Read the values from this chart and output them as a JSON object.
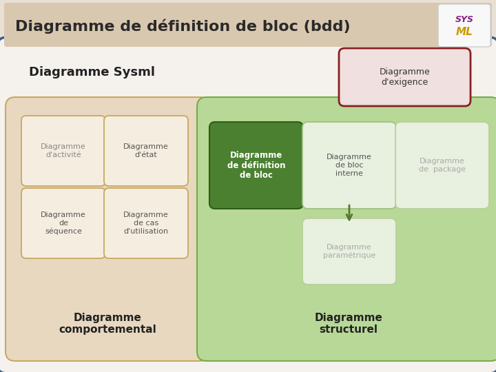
{
  "title": "Diagramme de définition de bloc (bdd)",
  "title_bg": "#d9c8b0",
  "title_color": "#2a2a2a",
  "main_bg": "#e8e0d4",
  "outer_bg": "#f5f2ee",
  "outer_border_color": "#3a5f8a",
  "sysml_label": "Diagramme Sysml",
  "behavioral_label": "Diagramme\ncomportemental",
  "behavioral_bg": "#e8d8c0",
  "behavioral_border": "#c8a860",
  "structural_label": "Diagramme\nstructurel",
  "structural_bg": "#b8d898",
  "structural_border": "#78aa48",
  "exigence_label": "Diagramme\nd'exigence",
  "exigence_bg": "#f0e0e0",
  "exigence_border": "#882020",
  "boxes_behavioral": [
    {
      "label": "Diagramme\nd'activité",
      "bg": "#f5ede0",
      "border": "#c8a860",
      "text_color": "#888888"
    },
    {
      "label": "Diagramme\nd'état",
      "bg": "#f5ede0",
      "border": "#c8a860",
      "text_color": "#555555"
    },
    {
      "label": "Diagramme\nde\nséquence",
      "bg": "#f5ede0",
      "border": "#c8a860",
      "text_color": "#555555"
    },
    {
      "label": "Diagramme\nde cas\nd'utilisation",
      "bg": "#f5ede0",
      "border": "#c8a860",
      "text_color": "#555555"
    }
  ],
  "boxes_structural": [
    {
      "label": "Diagramme\nde définition\nde bloc",
      "bg": "#4a8030",
      "border": "#2a6010",
      "text_color": "#ffffff",
      "bold": true
    },
    {
      "label": "Diagramme\nde bloc\ninterne",
      "bg": "#e8f0e0",
      "border": "#a0c080",
      "text_color": "#555555"
    },
    {
      "label": "Diagramme\nde  package",
      "bg": "#e8f0e0",
      "border": "#b8d098",
      "text_color": "#aaaaaa"
    },
    {
      "label": "Diagramme\nparamétrique",
      "bg": "#e8f0e0",
      "border": "#b8d098",
      "text_color": "#aaaaaa"
    }
  ],
  "arrow_color": "#557733"
}
